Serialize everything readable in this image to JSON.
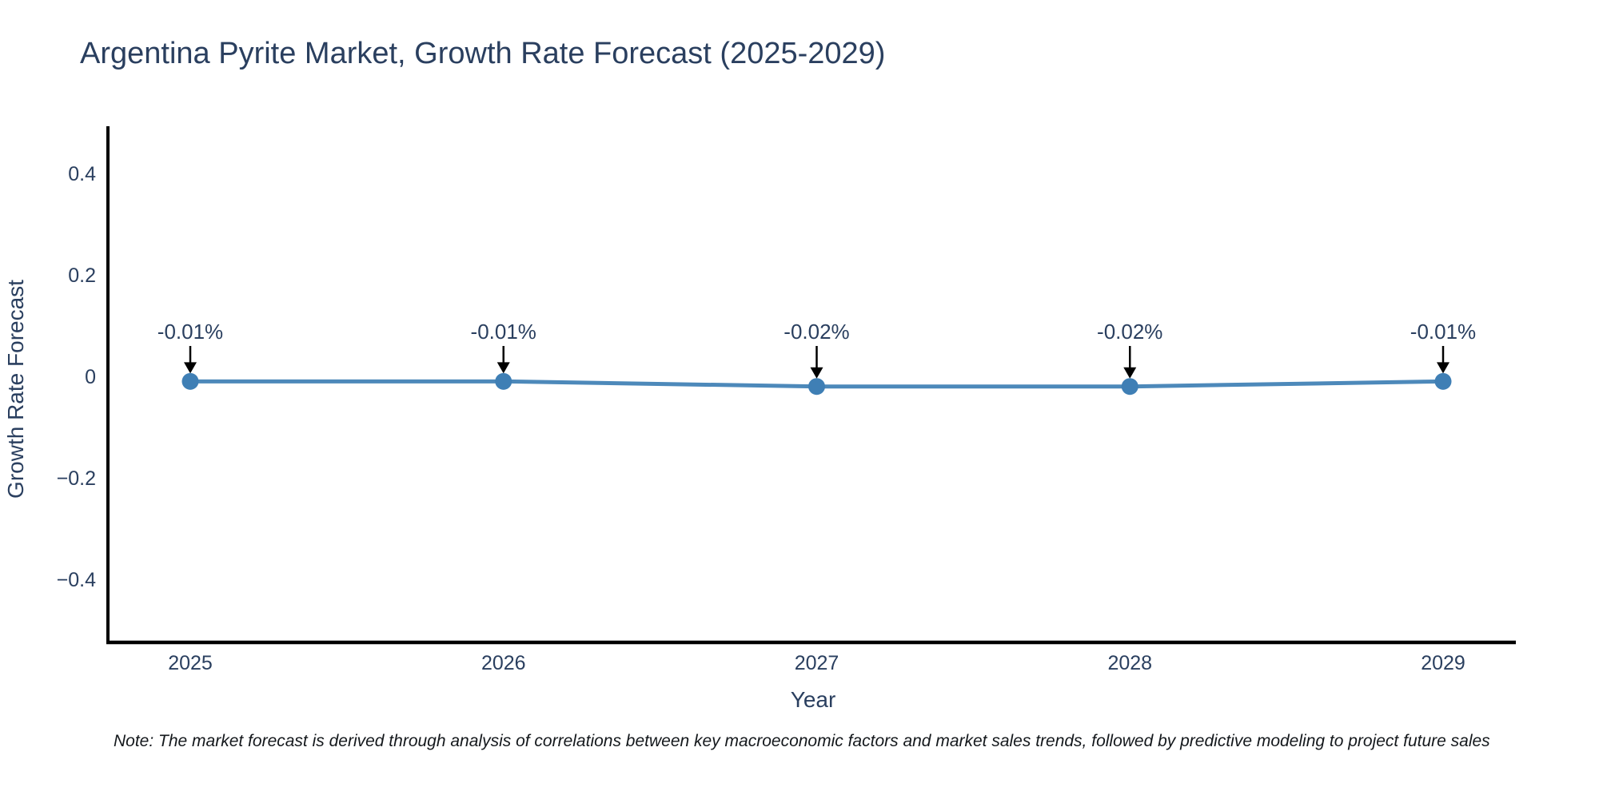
{
  "page": {
    "background": "#ffffff"
  },
  "chart_data": {
    "type": "line",
    "title": "Argentina Pyrite Market, Growth Rate Forecast (2025-2029)",
    "xlabel": "Year",
    "ylabel": "Growth Rate Forecast",
    "x": [
      2025,
      2026,
      2027,
      2028,
      2029
    ],
    "series": [
      {
        "name": "Growth Rate Forecast",
        "values": [
          -0.01,
          -0.01,
          -0.02,
          -0.02,
          -0.01
        ]
      }
    ],
    "point_labels": [
      "-0.01%",
      "-0.01%",
      "-0.02%",
      "-0.02%",
      "-0.01%"
    ],
    "xtick_labels": [
      "2025",
      "2026",
      "2027",
      "2028",
      "2029"
    ],
    "yticks": [
      0.4,
      0.2,
      0,
      -0.2,
      -0.4
    ],
    "ytick_labels": [
      "0.4",
      "0.2",
      "0",
      "−0.2",
      "−0.4"
    ],
    "ylim": [
      -0.52,
      0.49
    ],
    "grid": false,
    "legend": "none",
    "line_color": "#4d89ba",
    "marker_color": "#3f7fb5",
    "axis_color": "#000000",
    "text_color": "#2a3f5f",
    "annotation_arrow_color": "#000000"
  },
  "note": {
    "text": "Note: The market forecast is derived through analysis of correlations between key macroeconomic factors and market sales trends, followed by predictive modeling to project future sales"
  }
}
